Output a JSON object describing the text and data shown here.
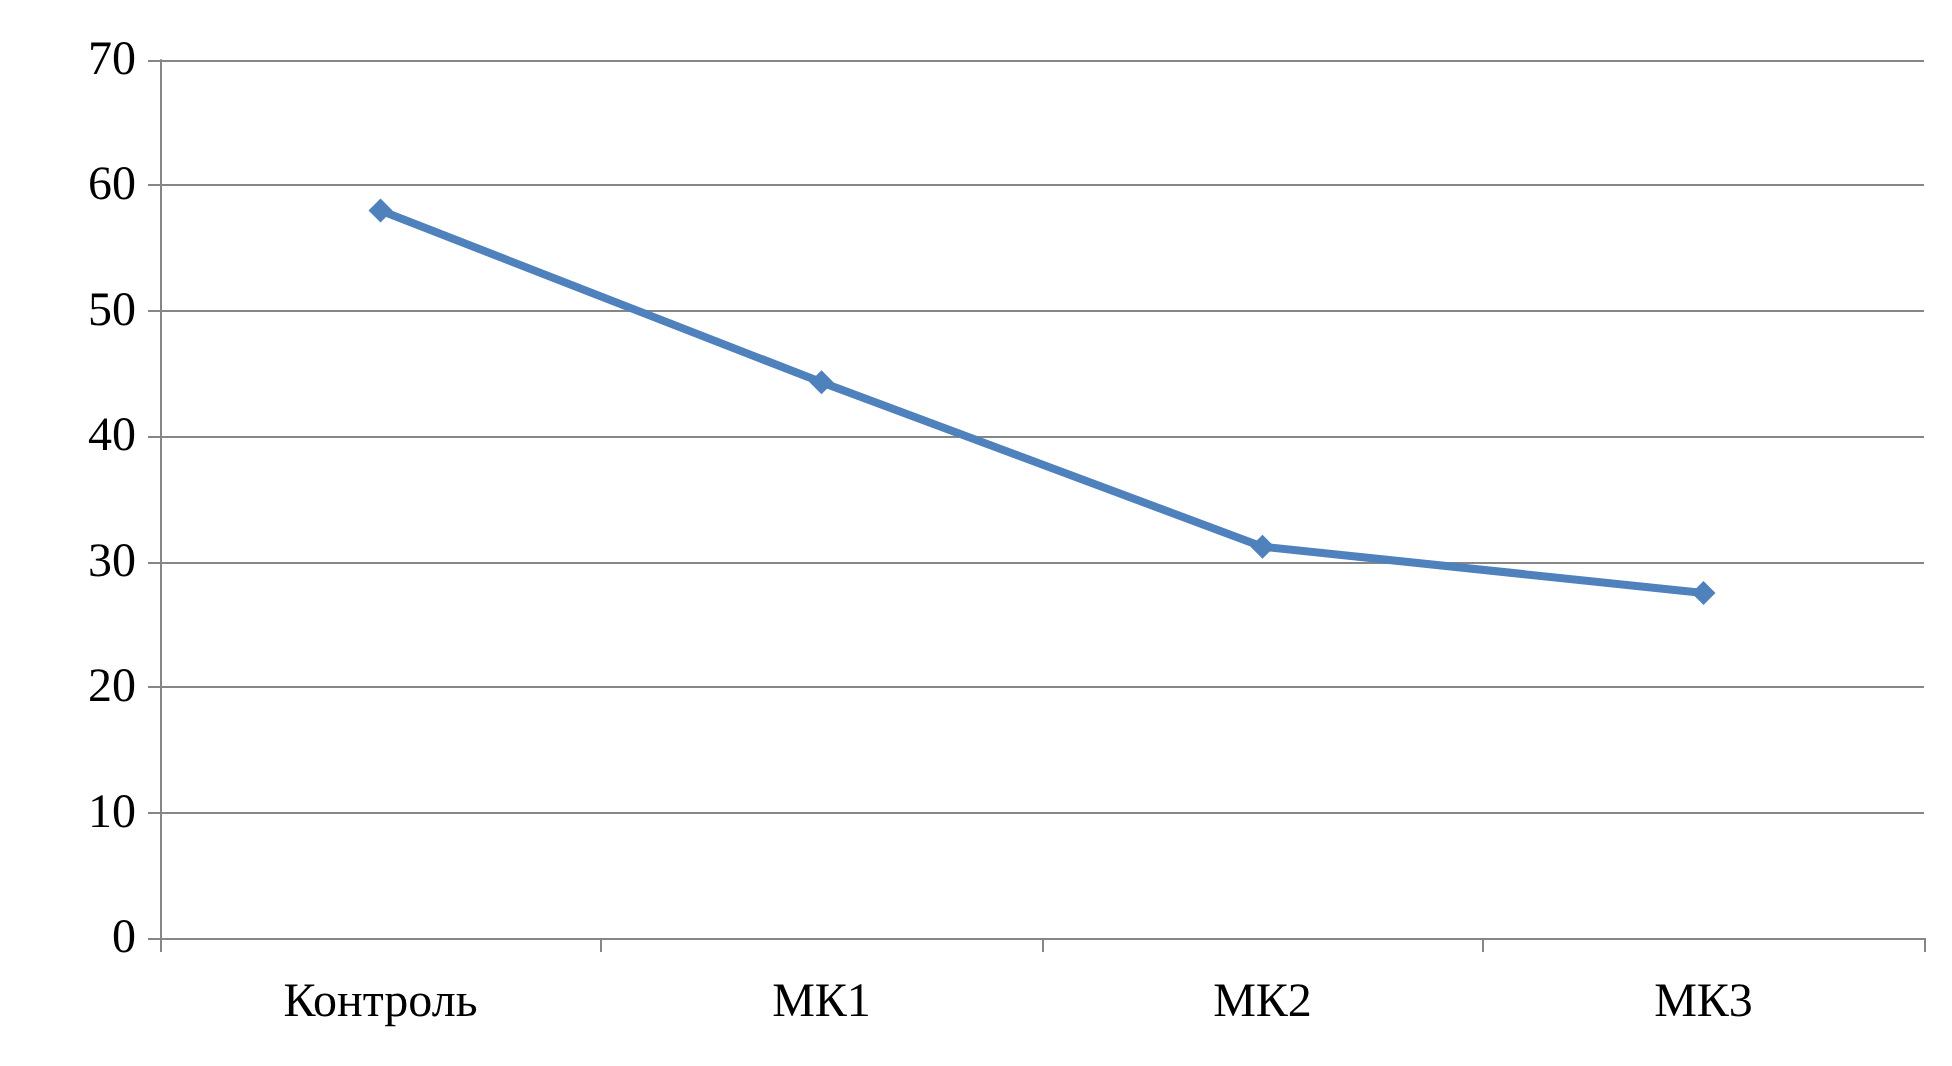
{
  "chart_data": {
    "type": "line",
    "categories": [
      "Контроль",
      "МК1",
      "МК2",
      "МК3"
    ],
    "series": [
      {
        "color": "#4f81bd",
        "values": [
          58,
          44.3,
          31.2,
          27.5
        ]
      }
    ],
    "ylim": [
      0,
      70
    ],
    "yticks": [
      0,
      10,
      20,
      30,
      40,
      50,
      60,
      70
    ],
    "grid": "y",
    "marker": "diamond",
    "line_style": "solid"
  }
}
